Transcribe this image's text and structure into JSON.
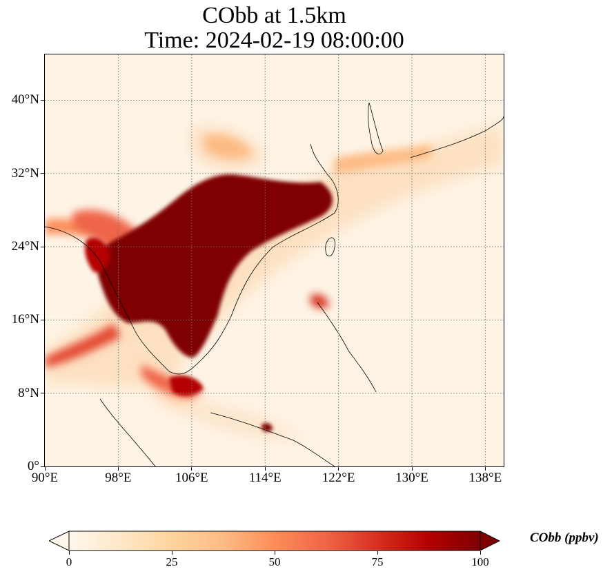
{
  "title_line1": "CObb at 1.5km",
  "title_line2": "Time: 2024-02-19 08:00:00",
  "map": {
    "lon_range": [
      90,
      140
    ],
    "lat_range": [
      0,
      45
    ],
    "lon_ticks": [
      "90°E",
      "98°E",
      "106°E",
      "114°E",
      "122°E",
      "130°E",
      "138°E"
    ],
    "lat_ticks": [
      "0°",
      "8°N",
      "16°N",
      "24°N",
      "32°N",
      "40°N"
    ],
    "gridlines": "dotted",
    "colormap": "OrRd",
    "plume_colors": {
      "max": "#7f0000",
      "high": "#b30000",
      "mid": "#d7301f",
      "low": "#fc8d59",
      "faint": "#fdd49e",
      "background": "#fff7ec"
    }
  },
  "colorbar": {
    "label": "CObb (ppbv)",
    "ticks": [
      "0",
      "25",
      "50",
      "75",
      "100"
    ],
    "range": [
      0,
      100
    ],
    "extend": "both",
    "colors": [
      "#fff7ec",
      "#fee8c8",
      "#fdd49e",
      "#fdbb84",
      "#fc8d59",
      "#ef6548",
      "#d7301f",
      "#b30000",
      "#7f0000"
    ]
  }
}
